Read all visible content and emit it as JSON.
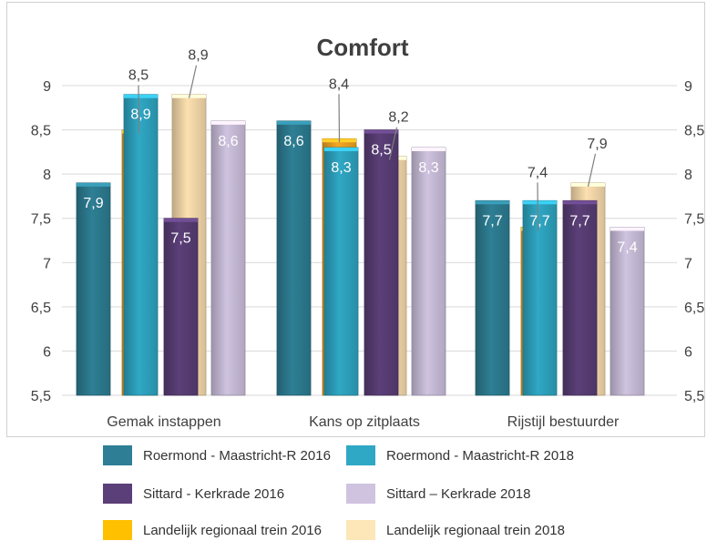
{
  "chart_data": {
    "type": "bar",
    "title": "Comfort",
    "categories": [
      "Gemak instappen",
      "Kans op zitplaats",
      "Rijstijl bestuurder"
    ],
    "ylim": [
      5.5,
      9
    ],
    "yticks": [
      "5,5",
      "6",
      "6,5",
      "7",
      "7,5",
      "8",
      "8,5",
      "9"
    ],
    "grid": true,
    "legend_position": "bottom",
    "series": [
      {
        "name": "Roermond - Maastricht-R 2016",
        "color": "#2e7f95",
        "values": [
          7.9,
          8.6,
          7.7
        ],
        "labels": [
          "7,9",
          "8,6",
          "7,7"
        ],
        "label_style": "inside"
      },
      {
        "name": "Landelijk regionaal trein 2016",
        "color": "#f5a623",
        "values": [
          8.5,
          8.4,
          7.4
        ],
        "labels": [
          "8,5",
          "8,4",
          "7,4"
        ],
        "label_style": "callout"
      },
      {
        "name": "Roermond - Maastricht-R 2018",
        "color": "#2fa8c5",
        "values": [
          8.9,
          8.3,
          7.7
        ],
        "labels": [
          "8,9",
          "8,3",
          "7,7"
        ],
        "label_style": "inside"
      },
      {
        "name": "Sittard - Kerkrade 2016",
        "color": "#5b3f78",
        "values": [
          7.5,
          8.5,
          7.7
        ],
        "labels": [
          "7,5",
          "8,5",
          "7,7"
        ],
        "label_style": "inside"
      },
      {
        "name": "Landelijk regionaal trein 2018",
        "color": "#fde0b0",
        "values": [
          8.9,
          8.2,
          7.9
        ],
        "labels": [
          "8,9",
          "8,2",
          "7,9"
        ],
        "label_style": "callout"
      },
      {
        "name": "Sittard – Kerkrade 2018",
        "color": "#cfc3e0",
        "values": [
          8.6,
          8.3,
          7.4
        ],
        "labels": [
          "8,6",
          "8,3",
          "7,4"
        ],
        "label_style": "inside"
      }
    ],
    "legend": [
      {
        "label": "Roermond - Maastricht-R 2016",
        "color": "#2e7f95"
      },
      {
        "label": "Roermond - Maastricht-R 2018",
        "color": "#2fa8c5"
      },
      {
        "label": "Sittard - Kerkrade 2016",
        "color": "#5b3f78"
      },
      {
        "label": "Sittard – Kerkrade 2018",
        "color": "#cfc3e0"
      },
      {
        "label": "Landelijk regionaal trein 2016",
        "color": "#ffc000"
      },
      {
        "label": "Landelijk regionaal trein 2018",
        "color": "#fde7b8"
      }
    ]
  }
}
